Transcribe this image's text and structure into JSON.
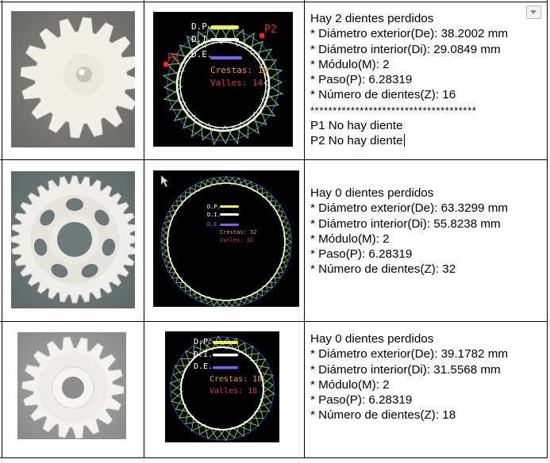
{
  "rows": [
    {
      "scan": {
        "dp": "D.P.",
        "di": "D.I.",
        "de": "D.E.",
        "crestas": "Crestas: 14",
        "valles": "Valles: 14",
        "p1": "P1",
        "p2": "P2"
      },
      "lines": [
        "Hay 2 dientes perdidos",
        "* Diámetro exterior(De): 38.2002 mm",
        "* Diámetro interior(Di): 29.0849 mm",
        "* Módulo(M): 2",
        "* Paso(P): 6.28319",
        "* Número de dientes(Z): 16",
        "*************************************",
        "P1 No hay diente",
        "P2 No hay diente"
      ]
    },
    {
      "scan": {
        "dp": "D.P.",
        "di": "D.I.",
        "de": "D.E.",
        "crestas": "Crestas: 32",
        "valles": "Valles: 32"
      },
      "lines": [
        "Hay 0 dientes perdidos",
        "* Diámetro exterior(De): 63.3299 mm",
        "* Diámetro interior(Di): 55.8238 mm",
        "* Módulo(M): 2",
        "* Paso(P): 6.28319",
        "* Número de dientes(Z): 32"
      ]
    },
    {
      "scan": {
        "dp": "D.P.",
        "di": "D.I.",
        "de": "D.E.",
        "crestas": "Crestas: 18",
        "valles": "Valles: 18"
      },
      "lines": [
        "Hay 0 dientes perdidos",
        "* Diámetro exterior(De): 39.1782 mm",
        "* Diámetro interior(Di): 31.5568 mm",
        "* Módulo(M): 2",
        "* Paso(P): 6.28319",
        "* Número de dientes(Z): 18"
      ]
    }
  ],
  "colors": {
    "dp_bar": "#f2ef5a",
    "di_bar": "#ffffff",
    "de_bar": "#6a6af2",
    "crestas_text": "#f0a030",
    "valles_text": "#e0306a",
    "outer_circle": "#3a4ad8",
    "tooth_trace": "#7ae04a",
    "marker": "#ff2020"
  },
  "icons": {
    "dropdown": "chevron-down-icon",
    "cursor": "mouse-pointer-icon"
  }
}
